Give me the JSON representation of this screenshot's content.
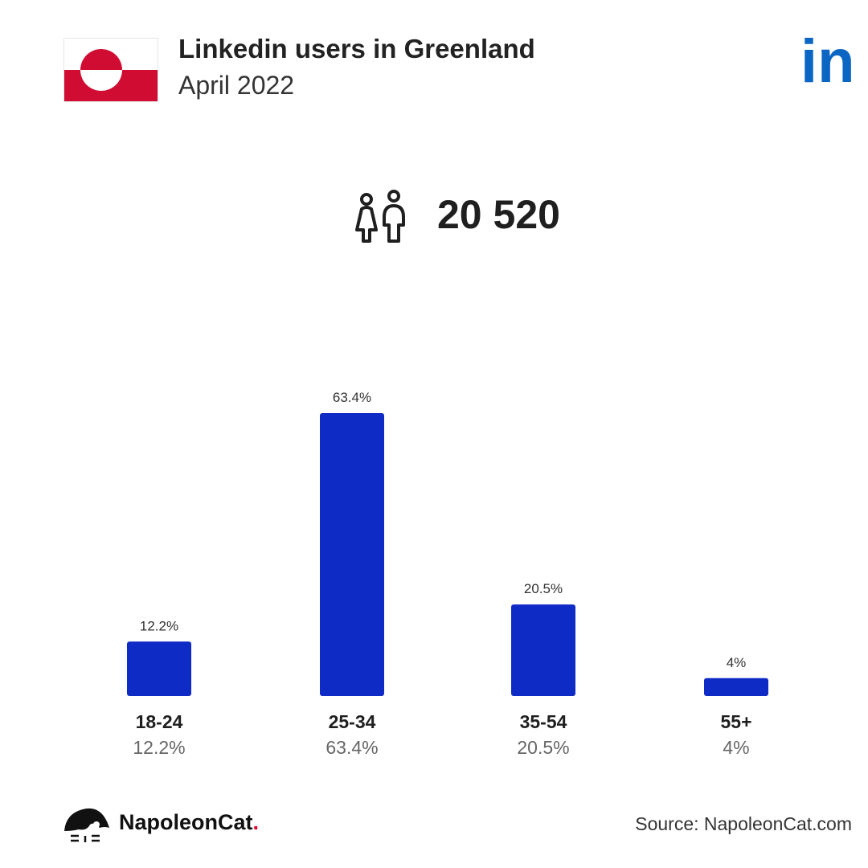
{
  "header": {
    "title": "Linkedin users in Greenland",
    "subtitle": "April 2022"
  },
  "flag": {
    "icon": "greenland-flag-icon",
    "colors": {
      "red": "#d00c33",
      "white": "#ffffff"
    }
  },
  "logo": {
    "icon": "linkedin-logo-icon",
    "text": "in",
    "color": "#0a66c2"
  },
  "total": {
    "icon": "people-icon",
    "value": "20 520"
  },
  "chart_data": {
    "type": "bar",
    "categories": [
      "18-24",
      "25-34",
      "35-54",
      "55+"
    ],
    "values": [
      12.2,
      63.4,
      20.5,
      4
    ],
    "value_labels": [
      "12.2%",
      "63.4%",
      "20.5%",
      "4%"
    ],
    "title": "",
    "xlabel": "",
    "ylabel": "",
    "ylim": [
      0,
      63.4
    ],
    "grid": false,
    "bar_color": "#0f2bc6"
  },
  "footer": {
    "brand_name": "NapoleonCat",
    "brand_dot": ".",
    "source": "Source: NapoleonCat.com"
  }
}
